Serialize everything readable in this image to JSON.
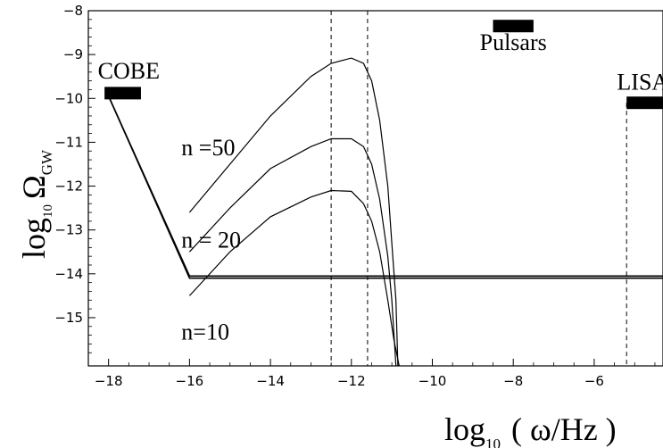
{
  "chart_data": {
    "type": "line",
    "title": "",
    "xlabel": {
      "prefix": "log",
      "sub": "10",
      "rest": "( ω/Hz )"
    },
    "ylabel": {
      "prefix": "log",
      "sub": "10",
      "sym": "Ω",
      "symsub": "GW"
    },
    "xlim": [
      -18.5,
      -4.3
    ],
    "ylim": [
      -16.1,
      -8
    ],
    "xticks": [
      -18,
      -16,
      -14,
      -12,
      -10,
      -8,
      -6
    ],
    "yticks": [
      -8,
      -9,
      -10,
      -11,
      -12,
      -13,
      -14,
      -15
    ],
    "vlines": [
      -12.5,
      -11.6,
      -5.2
    ],
    "series": [
      {
        "name": "n =50",
        "label_at": [
          -16.2,
          -11.3
        ],
        "points": [
          [
            -16,
            -12.6
          ],
          [
            -15,
            -11.5
          ],
          [
            -14,
            -10.4
          ],
          [
            -13,
            -9.5
          ],
          [
            -12.5,
            -9.2
          ],
          [
            -12,
            -9.08
          ],
          [
            -11.7,
            -9.2
          ],
          [
            -11.5,
            -9.6
          ],
          [
            -11.3,
            -10.5
          ],
          [
            -11.1,
            -12.0
          ],
          [
            -11.0,
            -13.3
          ],
          [
            -10.9,
            -14.6
          ],
          [
            -10.85,
            -16.1
          ]
        ]
      },
      {
        "name": "n = 20",
        "label_at": [
          -16.2,
          -13.4
        ],
        "points": [
          [
            -16,
            -13.5
          ],
          [
            -15,
            -12.5
          ],
          [
            -14,
            -11.6
          ],
          [
            -13,
            -11.1
          ],
          [
            -12.5,
            -10.92
          ],
          [
            -12,
            -10.92
          ],
          [
            -11.7,
            -11.1
          ],
          [
            -11.5,
            -11.5
          ],
          [
            -11.3,
            -12.3
          ],
          [
            -11.1,
            -13.6
          ],
          [
            -11.0,
            -14.6
          ],
          [
            -10.9,
            -16.1
          ]
        ]
      },
      {
        "name": "n=10",
        "label_at": [
          -16.2,
          -15.5
        ],
        "points": [
          [
            -16,
            -14.5
          ],
          [
            -15,
            -13.5
          ],
          [
            -14,
            -12.7
          ],
          [
            -13,
            -12.25
          ],
          [
            -12.5,
            -12.1
          ],
          [
            -12,
            -12.12
          ],
          [
            -11.7,
            -12.4
          ],
          [
            -11.5,
            -12.8
          ],
          [
            -11.3,
            -13.5
          ],
          [
            -11.1,
            -14.6
          ],
          [
            -10.95,
            -15.5
          ],
          [
            -10.82,
            -16.1
          ]
        ]
      },
      {
        "name": "",
        "points": [
          [
            -18,
            -9.95
          ],
          [
            -16,
            -14.05
          ],
          [
            -4.3,
            -14.05
          ]
        ]
      },
      {
        "name": "",
        "points": [
          [
            -18,
            -9.95
          ],
          [
            -16,
            -14.1
          ],
          [
            -4.3,
            -14.1
          ]
        ]
      }
    ],
    "detector_bands": [
      {
        "name": "COBE",
        "x": [
          -18.1,
          -17.2
        ],
        "y": -9.88,
        "label_at": [
          -17.5,
          -9.55
        ]
      },
      {
        "name": "Pulsars",
        "x": [
          -8.5,
          -7.5
        ],
        "y": -8.35,
        "label_at": [
          -8.0,
          -8.9
        ]
      },
      {
        "name": "LISA",
        "x": [
          -5.2,
          -4.3
        ],
        "y": -10.1,
        "label_at": [
          -4.8,
          -9.8
        ]
      }
    ]
  }
}
